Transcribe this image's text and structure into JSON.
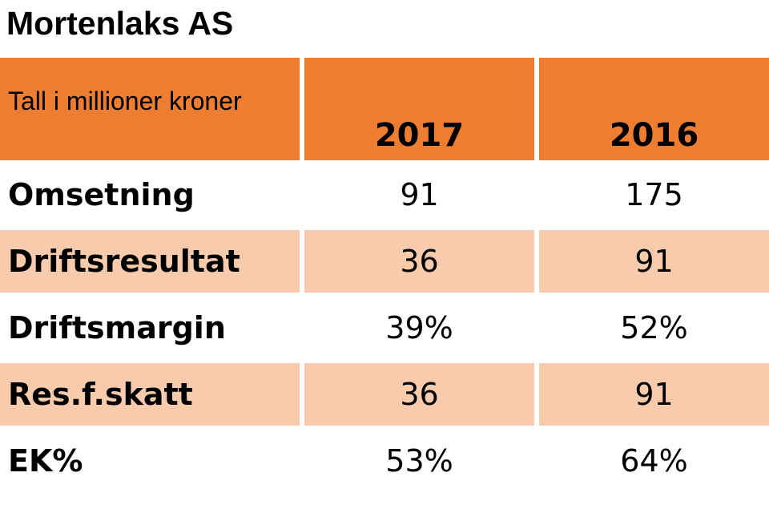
{
  "title": "Mortenlaks AS",
  "chart_data": {
    "type": "table",
    "title": "Mortenlaks AS",
    "header": {
      "label": "Tall i millioner kroner",
      "columns": [
        "2017",
        "2016"
      ]
    },
    "rows": [
      {
        "label": "Omsetning",
        "values": [
          "91",
          "175"
        ]
      },
      {
        "label": "Driftsresultat",
        "values": [
          "36",
          "91"
        ]
      },
      {
        "label": "Driftsmargin",
        "values": [
          "39%",
          "52%"
        ]
      },
      {
        "label": "Res.f.skatt",
        "values": [
          "36",
          "91"
        ]
      },
      {
        "label": "EK%",
        "values": [
          "53%",
          "64%"
        ]
      }
    ]
  },
  "colors": {
    "header": "#ed7d31",
    "shaded_row": "#f8cbad",
    "plain_row": "#ffffff"
  }
}
